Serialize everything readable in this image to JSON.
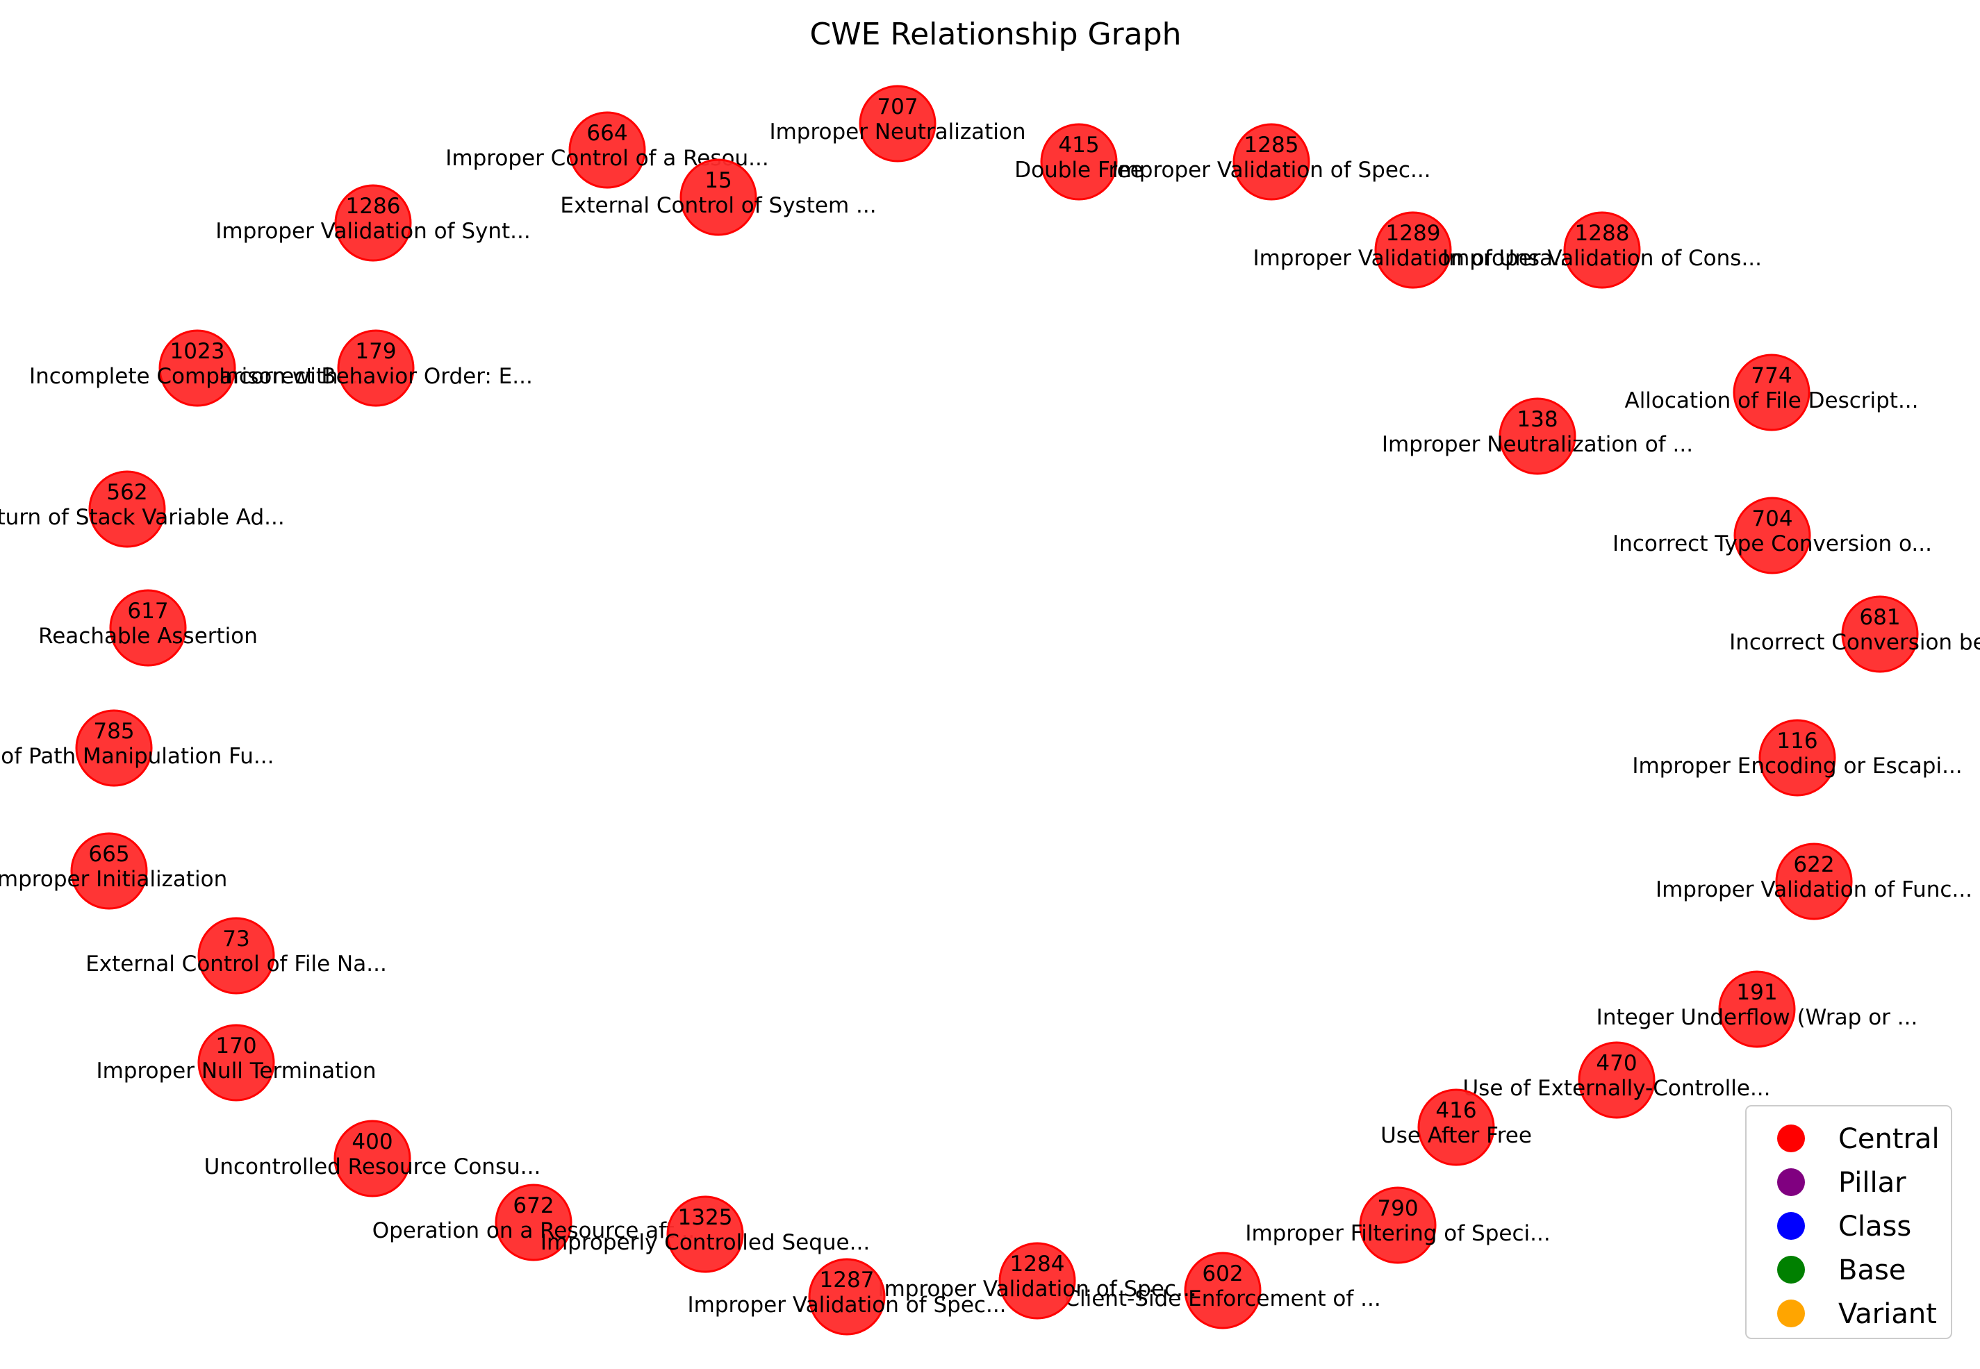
{
  "title": "CWE Relationship Graph",
  "nodes": [
    {
      "id": "707",
      "label": "Improper Neutralization"
    },
    {
      "id": "415",
      "label": "Double Free"
    },
    {
      "id": "1285",
      "label": "Improper Validation of Spec..."
    },
    {
      "id": "664",
      "label": "Improper Control of a Resou..."
    },
    {
      "id": "15",
      "label": "External Control of System ..."
    },
    {
      "id": "1286",
      "label": "Improper Validation of Synt..."
    },
    {
      "id": "1289",
      "label": "Improper Validation of Unsa..."
    },
    {
      "id": "1288",
      "label": "Improper Validation of Cons..."
    },
    {
      "id": "1023",
      "label": "Incomplete Comparison with ..."
    },
    {
      "id": "179",
      "label": "Incorrect Behavior Order: E..."
    },
    {
      "id": "774",
      "label": "Allocation of File Descript..."
    },
    {
      "id": "138",
      "label": "Improper Neutralization of ..."
    },
    {
      "id": "562",
      "label": "Return of Stack Variable Ad..."
    },
    {
      "id": "704",
      "label": "Incorrect Type Conversion o..."
    },
    {
      "id": "617",
      "label": "Reachable Assertion"
    },
    {
      "id": "681",
      "label": "Incorrect Conversion betw..."
    },
    {
      "id": "785",
      "label": "Use of Path Manipulation Fu..."
    },
    {
      "id": "116",
      "label": "Improper Encoding or Escapi..."
    },
    {
      "id": "665",
      "label": "Improper Initialization"
    },
    {
      "id": "622",
      "label": "Improper Validation of Func..."
    },
    {
      "id": "73",
      "label": "External Control of File Na..."
    },
    {
      "id": "191",
      "label": "Integer Underflow (Wrap or ..."
    },
    {
      "id": "170",
      "label": "Improper Null Termination"
    },
    {
      "id": "470",
      "label": "Use of Externally-Controlle..."
    },
    {
      "id": "416",
      "label": "Use After Free"
    },
    {
      "id": "400",
      "label": "Uncontrolled Resource Consu..."
    },
    {
      "id": "790",
      "label": "Improper Filtering of Speci..."
    },
    {
      "id": "672",
      "label": "Operation on a Resource aft..."
    },
    {
      "id": "1325",
      "label": "Improperly Controlled Seque..."
    },
    {
      "id": "602",
      "label": "Client-Side Enforcement of ..."
    },
    {
      "id": "1284",
      "label": "Improper Validation of Spec..."
    },
    {
      "id": "1287",
      "label": "Improper Validation of Spec..."
    }
  ],
  "legend": [
    {
      "label": "Central",
      "color": "#ff0000"
    },
    {
      "label": "Pillar",
      "color": "#800080"
    },
    {
      "label": "Class",
      "color": "#0000ff"
    },
    {
      "label": "Base",
      "color": "#008000"
    },
    {
      "label": "Variant",
      "color": "#ffa500"
    }
  ],
  "colors": {
    "node_fill": "#ff2a2a",
    "node_stroke": "#ff0000"
  }
}
